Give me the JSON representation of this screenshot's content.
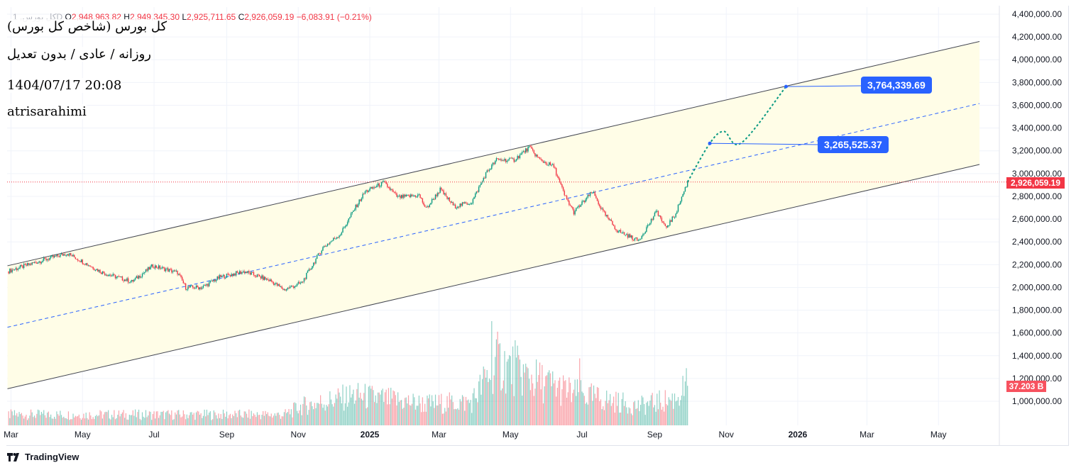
{
  "legend": {
    "symbol": "کل بورس, 1D",
    "open_label": "O",
    "open": "2,948,963.82",
    "high_label": "H",
    "high": "2,949,345.30",
    "low_label": "L",
    "low": "2,925,711.65",
    "close_label": "C",
    "close": "2,926,059.19",
    "change": "−6,083.91 (−0.21%)"
  },
  "notes": {
    "title": "کل بورس (شاخص کل بورس)",
    "subtitle": "روزانه / عادی / بدون تعدیل",
    "datetime": "1404/07/17 20:08",
    "author": "atrisarahimi"
  },
  "price_tag": "2,926,059.19",
  "volume_tag": "37.203 B",
  "callouts": [
    "3,265,525.37",
    "3,764,339.69"
  ],
  "footer": {
    "brand": "TradingView"
  },
  "colors": {
    "up": "#089981",
    "down": "#f23645",
    "channel_fill": "#fffde7",
    "mid_line": "#2962ff",
    "projection": "#089981",
    "last_price": "#f23645"
  },
  "chart_data": {
    "type": "candlestick",
    "title": "کل بورس (شاخص کل بورس) 1D",
    "y_ticks": [
      "4,400,000.00",
      "4,200,000.00",
      "4,000,000.00",
      "3,800,000.00",
      "3,600,000.00",
      "3,400,000.00",
      "3,200,000.00",
      "3,000,000.00",
      "2,800,000.00",
      "2,600,000.00",
      "2,400,000.00",
      "2,200,000.00",
      "2,000,000.00",
      "1,800,000.00",
      "1,600,000.00",
      "1,400,000.00",
      "1,200,000.00",
      "1,000,000.00"
    ],
    "ylim": [
      1000000,
      4400000
    ],
    "x_ticks": [
      {
        "label": "Mar",
        "date": "2024-03-01"
      },
      {
        "label": "May",
        "date": "2024-05-01"
      },
      {
        "label": "Jul",
        "date": "2024-07-01"
      },
      {
        "label": "Sep",
        "date": "2024-09-01"
      },
      {
        "label": "Nov",
        "date": "2024-11-01"
      },
      {
        "label": "2025",
        "date": "2025-01-01",
        "bold": true
      },
      {
        "label": "Mar",
        "date": "2025-03-01"
      },
      {
        "label": "May",
        "date": "2025-05-01"
      },
      {
        "label": "Jul",
        "date": "2025-07-01"
      },
      {
        "label": "Sep",
        "date": "2025-09-01"
      },
      {
        "label": "Nov",
        "date": "2025-11-01"
      },
      {
        "label": "2026",
        "date": "2026-01-01",
        "bold": true
      },
      {
        "label": "Mar",
        "date": "2026-03-01"
      },
      {
        "label": "May",
        "date": "2026-05-01"
      }
    ],
    "close_waypoints": [
      [
        "2024-02-27",
        2140000
      ],
      [
        "2024-03-22",
        2220000
      ],
      [
        "2024-04-18",
        2300000
      ],
      [
        "2024-05-18",
        2130000
      ],
      [
        "2024-06-12",
        2050000
      ],
      [
        "2024-06-30",
        2190000
      ],
      [
        "2024-07-21",
        2130000
      ],
      [
        "2024-07-28",
        2000000
      ],
      [
        "2024-08-11",
        2000000
      ],
      [
        "2024-08-26",
        2090000
      ],
      [
        "2024-09-16",
        2140000
      ],
      [
        "2024-10-08",
        2060000
      ],
      [
        "2024-10-20",
        1980000
      ],
      [
        "2024-11-04",
        2040000
      ],
      [
        "2024-11-22",
        2350000
      ],
      [
        "2024-12-07",
        2470000
      ],
      [
        "2024-12-19",
        2690000
      ],
      [
        "2024-12-28",
        2840000
      ],
      [
        "2025-01-13",
        2920000
      ],
      [
        "2025-01-25",
        2790000
      ],
      [
        "2025-02-12",
        2810000
      ],
      [
        "2025-02-18",
        2690000
      ],
      [
        "2025-03-02",
        2860000
      ],
      [
        "2025-03-14",
        2710000
      ],
      [
        "2025-03-29",
        2750000
      ],
      [
        "2025-04-10",
        3000000
      ],
      [
        "2025-04-19",
        3120000
      ],
      [
        "2025-05-04",
        3120000
      ],
      [
        "2025-05-17",
        3230000
      ],
      [
        "2025-05-26",
        3120000
      ],
      [
        "2025-06-07",
        3060000
      ],
      [
        "2025-06-16",
        2810000
      ],
      [
        "2025-06-24",
        2660000
      ],
      [
        "2025-07-10",
        2840000
      ],
      [
        "2025-07-19",
        2660000
      ],
      [
        "2025-07-31",
        2500000
      ],
      [
        "2025-08-18",
        2410000
      ],
      [
        "2025-09-03",
        2670000
      ],
      [
        "2025-09-10",
        2520000
      ],
      [
        "2025-09-18",
        2630000
      ],
      [
        "2025-09-29",
        2926059.19
      ]
    ],
    "volume_waypoints_B": [
      [
        "2024-02-27",
        10
      ],
      [
        "2024-10-20",
        10
      ],
      [
        "2024-11-04",
        18
      ],
      [
        "2024-12-19",
        28
      ],
      [
        "2025-02-18",
        20
      ],
      [
        "2025-03-29",
        22
      ],
      [
        "2025-04-19",
        60
      ],
      [
        "2025-05-17",
        45
      ],
      [
        "2025-06-24",
        30
      ],
      [
        "2025-08-18",
        18
      ],
      [
        "2025-09-18",
        25
      ],
      [
        "2025-09-29",
        37.203
      ]
    ],
    "volume_spikes_B": [
      [
        "2025-04-15",
        98
      ],
      [
        "2025-05-05",
        80
      ],
      [
        "2025-06-29",
        63
      ]
    ],
    "channel": {
      "upper": [
        [
          "2024-02-27",
          2190000
        ],
        [
          "2026-06-05",
          4160000
        ]
      ],
      "lower": [
        [
          "2024-02-27",
          1110000
        ],
        [
          "2026-06-05",
          3080000
        ]
      ],
      "mid": [
        [
          "2024-02-27",
          1650000
        ],
        [
          "2026-06-05",
          3615000
        ]
      ]
    },
    "projection": [
      [
        "2025-09-29",
        2926059.19
      ],
      [
        "2025-10-18",
        3265525.37
      ],
      [
        "2025-10-30",
        3370000
      ],
      [
        "2025-11-14",
        3270000
      ],
      [
        "2025-12-22",
        3764339.69
      ]
    ],
    "last_price": 2926059.19
  }
}
